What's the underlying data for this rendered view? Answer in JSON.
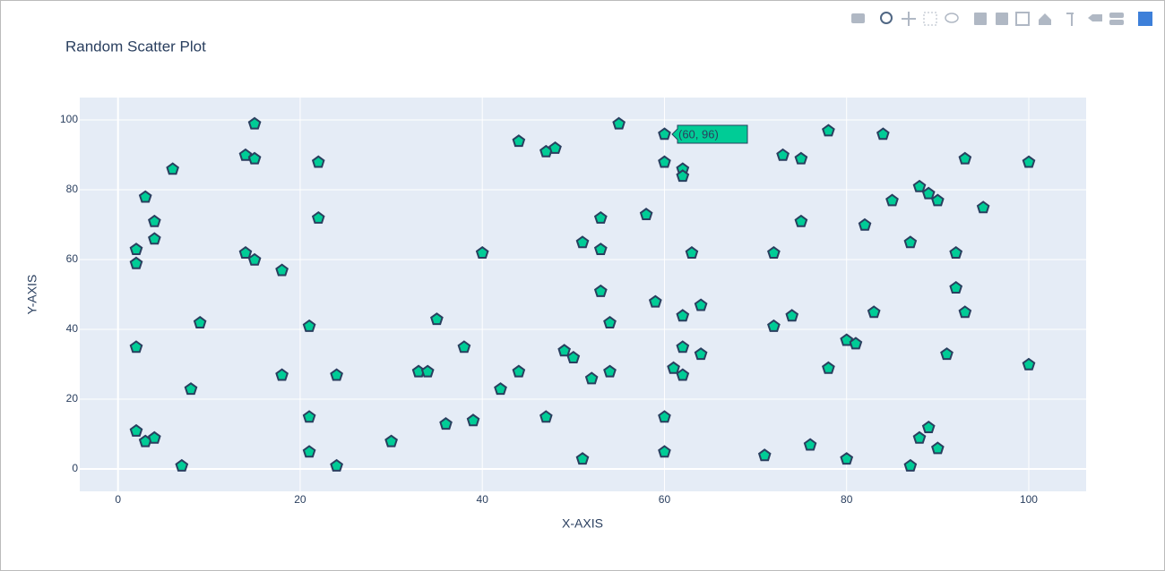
{
  "chart_data": {
    "type": "scatter",
    "title": "Random Scatter Plot",
    "x_label": "X-AXIS",
    "y_label": "Y-AXIS",
    "hover_label": "(60, 96)",
    "color": "#00cc96",
    "edge_color": "#2a3f5f",
    "xlim": [
      -4.2,
      106.3
    ],
    "ylim": [
      -6.4,
      106.4
    ],
    "xticks": [
      0,
      20,
      40,
      60,
      80,
      100
    ],
    "yticks": [
      0,
      20,
      40,
      60,
      80,
      100
    ],
    "grid": true,
    "x": [
      2,
      2,
      2,
      2,
      3,
      3,
      4,
      4,
      4,
      6,
      7,
      8,
      9,
      14,
      14,
      15,
      15,
      15,
      18,
      18,
      21,
      21,
      21,
      22,
      22,
      24,
      24,
      30,
      33,
      34,
      35,
      36,
      38,
      39,
      40,
      42,
      44,
      44,
      47,
      47,
      48,
      49,
      50,
      51,
      51,
      52,
      53,
      53,
      53,
      54,
      54,
      55,
      58,
      59,
      60,
      60,
      60,
      60,
      61,
      62,
      62,
      62,
      62,
      62,
      63,
      64,
      64,
      71,
      72,
      72,
      73,
      74,
      75,
      75,
      76,
      78,
      78,
      80,
      80,
      81,
      82,
      83,
      84,
      85,
      87,
      87,
      88,
      88,
      89,
      89,
      90,
      90,
      91,
      92,
      92,
      93,
      93,
      95,
      100,
      100
    ],
    "values": [
      63,
      59,
      35,
      11,
      78,
      8,
      71,
      66,
      9,
      86,
      1,
      23,
      42,
      90,
      62,
      99,
      89,
      60,
      57,
      27,
      41,
      15,
      5,
      88,
      72,
      27,
      1,
      8,
      28,
      28,
      43,
      13,
      35,
      14,
      62,
      23,
      94,
      28,
      91,
      15,
      92,
      34,
      32,
      65,
      3,
      26,
      72,
      63,
      51,
      42,
      28,
      99,
      73,
      48,
      96,
      88,
      15,
      5,
      29,
      86,
      84,
      44,
      35,
      27,
      62,
      47,
      33,
      4,
      62,
      41,
      90,
      44,
      89,
      71,
      7,
      97,
      29,
      37,
      3,
      36,
      70,
      45,
      96,
      77,
      65,
      1,
      81,
      9,
      79,
      12,
      77,
      6,
      33,
      62,
      52,
      89,
      45,
      75,
      88,
      30
    ]
  }
}
